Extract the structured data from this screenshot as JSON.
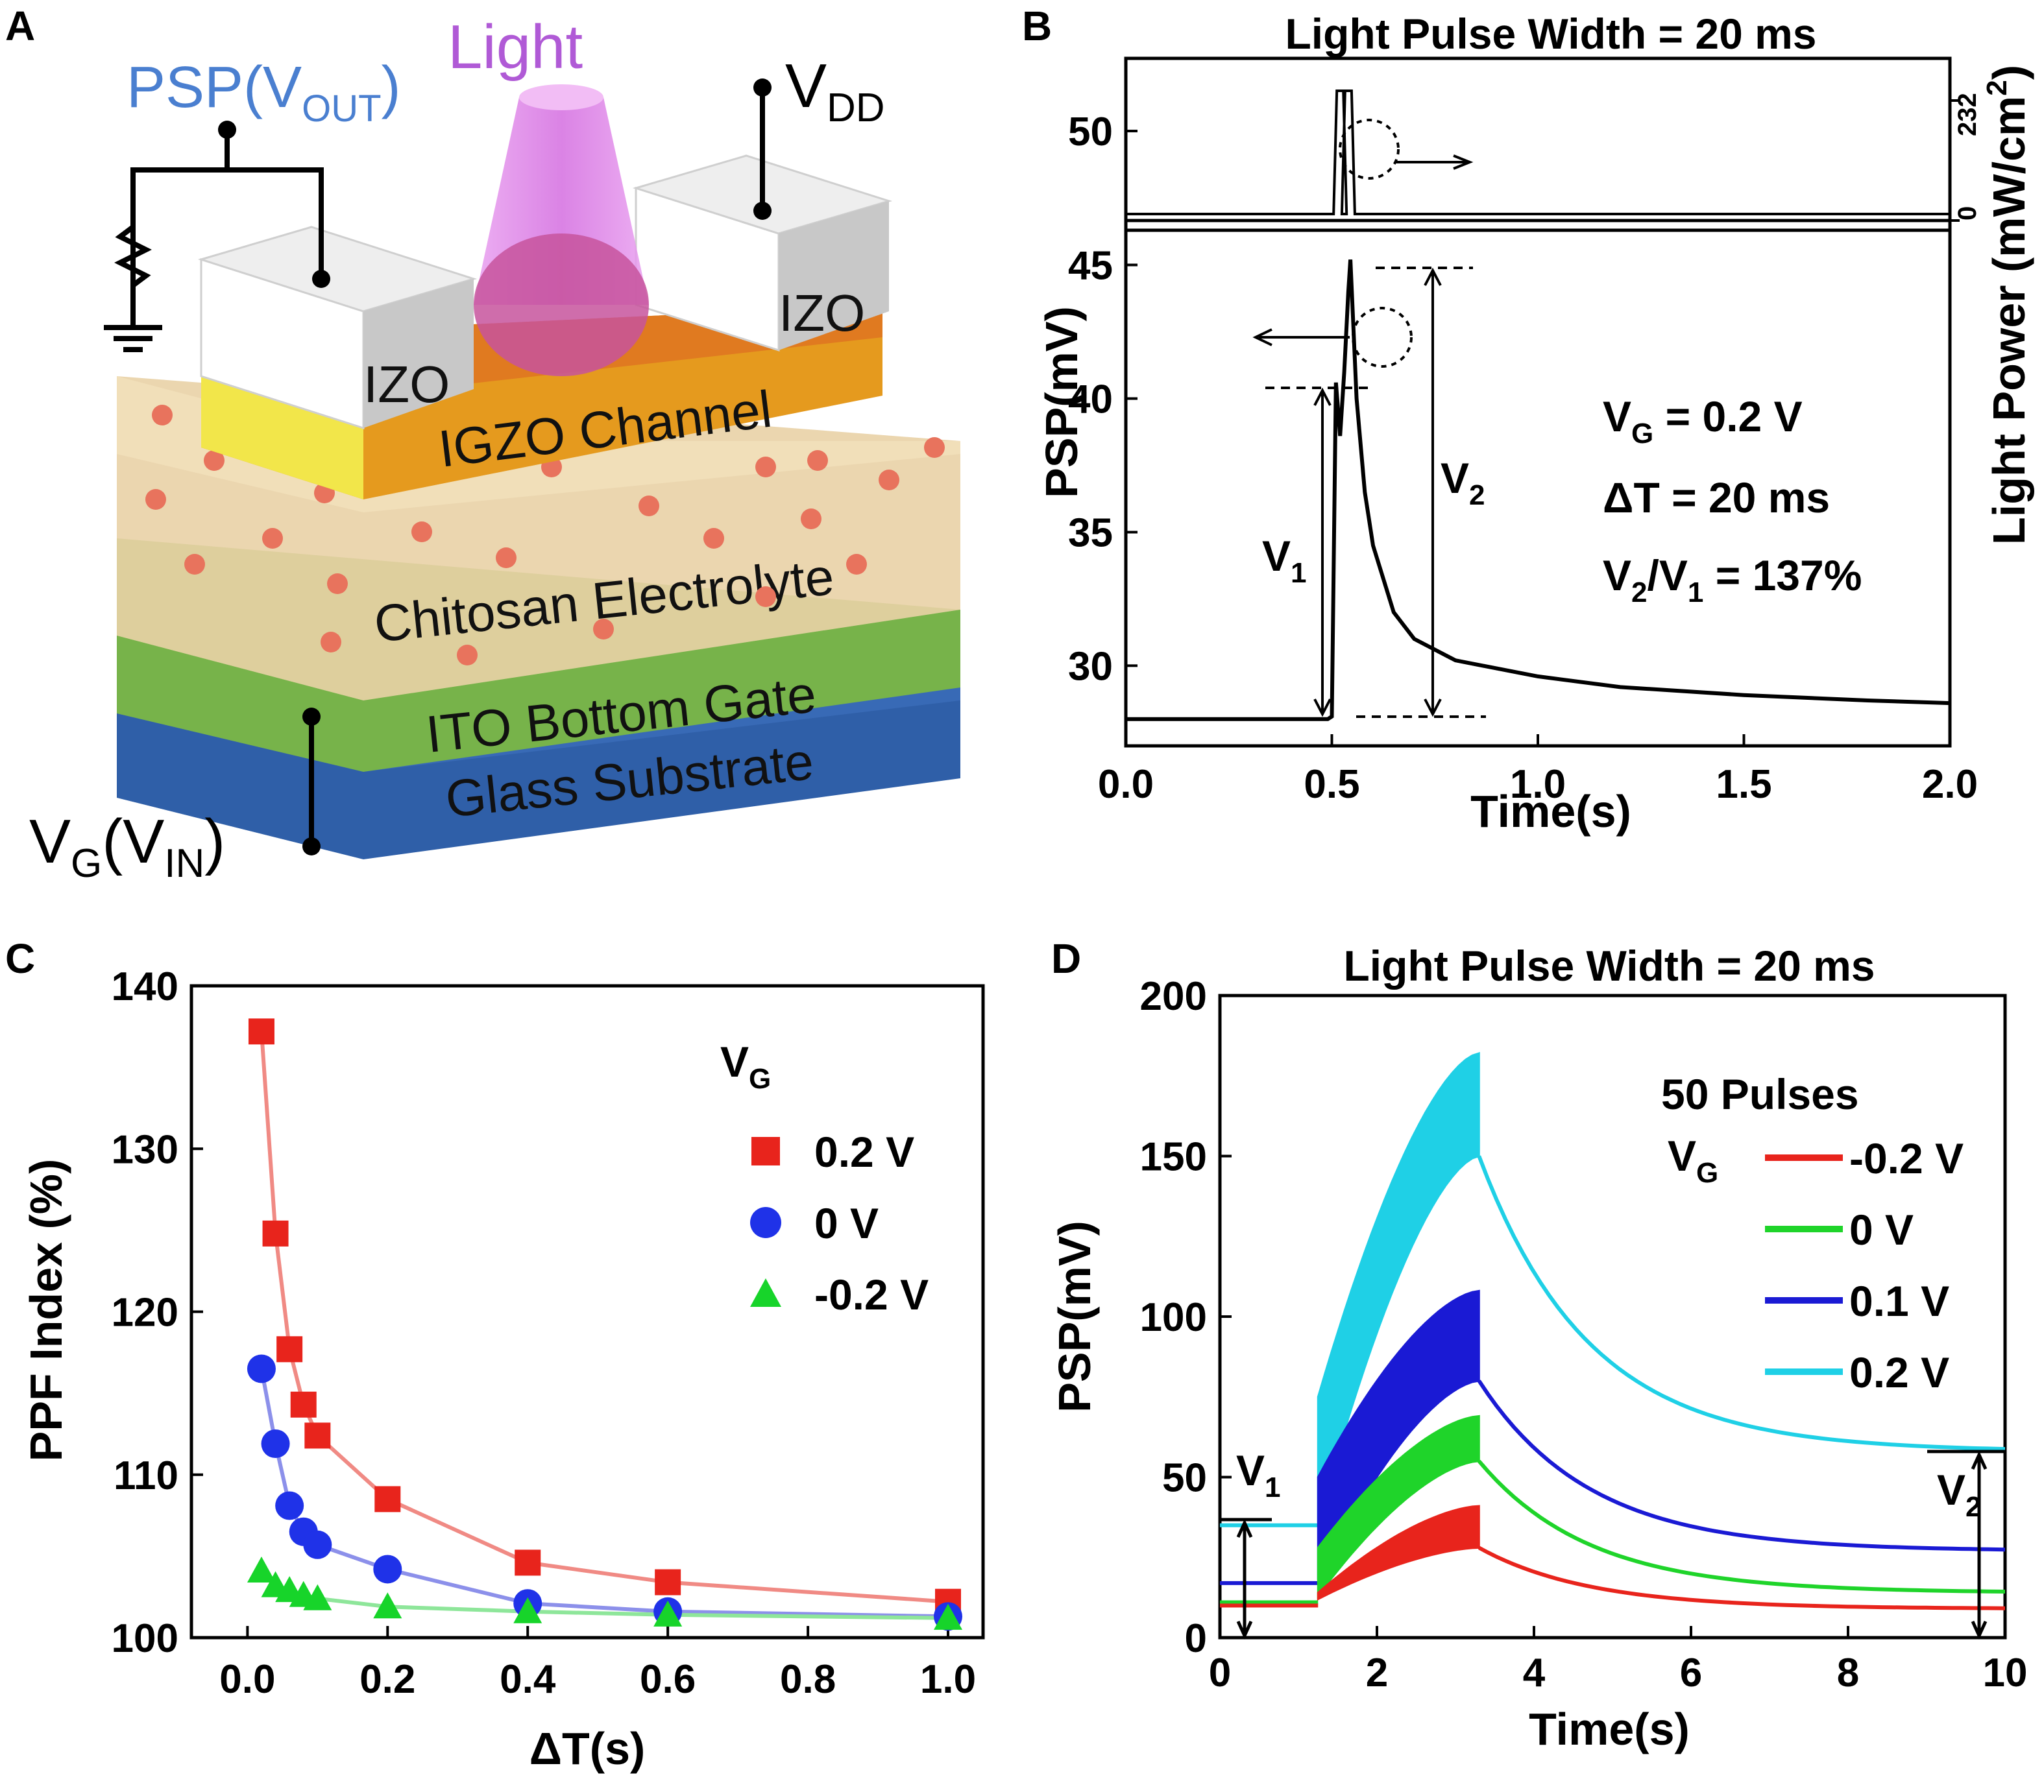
{
  "panels": {
    "A": {
      "label": "A",
      "psp": "PSP(V",
      "psp_sub": "OUT",
      "psp_close": ")",
      "light": "Light",
      "vdd": "V",
      "vdd_sub": "DD",
      "izo_left": "IZO",
      "izo_right": "IZO",
      "channel": "IGZO Channel",
      "electrolyte": "Chitosan Electrolyte",
      "gate": "ITO Bottom Gate",
      "substrate": "Glass Substrate",
      "vg": "V",
      "vg_sub": "G",
      "vg_paren": "(V",
      "vin_sub": "IN",
      "vg_close": ")",
      "colors": {
        "psp": "#4a7fd0",
        "light": "#b05ad6",
        "channel": "#e59a1e",
        "electrolyte": "#e9d2a6",
        "gate": "#77b34a",
        "substrate": "#2f5fa8",
        "ion": "#e8735d"
      }
    },
    "B": {
      "label": "B",
      "title": "Light Pulse Width = 20 ms",
      "ylabel": "PSP(mV)",
      "y2label": "Light Power (mW/cm",
      "y2label_sup": "2",
      "y2label_close": ")",
      "xlabel": "Time(s)",
      "y2ticks": [
        "0",
        "232"
      ],
      "v1": "V",
      "v1_sub": "1",
      "v2": "V",
      "v2_sub": "2",
      "anno_vg": "V",
      "anno_vg_sub": "G",
      "anno_vg_val": " = 0.2 V",
      "anno_dt": "ΔT = 20 ms",
      "anno_ratio_a": "V",
      "anno_ratio_a_sub": "2",
      "anno_ratio_b": "/V",
      "anno_ratio_b_sub": "1",
      "anno_ratio_val": " = 137%"
    },
    "C": {
      "label": "C",
      "ylabel": "PPF Index (%)",
      "xlabel": "ΔT(s)",
      "legend_title": "V",
      "legend_title_sub": "G"
    },
    "D": {
      "label": "D",
      "title": "Light Pulse Width = 20 ms",
      "ylabel": "PSP(mV)",
      "xlabel": "Time(s)",
      "legend_header": "50 Pulses",
      "legend_vg": "V",
      "legend_vg_sub": "G",
      "v1": "V",
      "v1_sub": "1",
      "v2": "V",
      "v2_sub": "2"
    }
  },
  "chart_data": [
    {
      "id": "B",
      "type": "line",
      "title": "Light Pulse Width = 20 ms",
      "xlabel": "Time(s)",
      "ylabel": "PSP(mV)",
      "xlim": [
        0.0,
        2.0
      ],
      "ylim": [
        27,
        53
      ],
      "xticks": [
        0.0,
        0.5,
        1.0,
        1.5,
        2.0
      ],
      "xtick_labels": [
        "0.0",
        "0.5",
        "1.0",
        "1.5",
        "2.0"
      ],
      "yticks": [
        30,
        35,
        40,
        45,
        50
      ],
      "ytick_labels": [
        "30",
        "35",
        "40",
        "45",
        "50"
      ],
      "series": [
        {
          "name": "PSP",
          "x": [
            0.0,
            0.49,
            0.5,
            0.51,
            0.52,
            0.53,
            0.54,
            0.545,
            0.56,
            0.58,
            0.6,
            0.65,
            0.7,
            0.8,
            1.0,
            1.2,
            1.5,
            1.8,
            2.0
          ],
          "y": [
            28.0,
            28.0,
            28.1,
            40.6,
            38.6,
            41.0,
            44.0,
            45.2,
            40.0,
            36.5,
            34.5,
            32.0,
            31.0,
            30.2,
            29.6,
            29.2,
            28.9,
            28.7,
            28.6
          ]
        }
      ],
      "light_pulses_s": [
        0.52,
        0.54
      ],
      "light_power_range": [
        0,
        232
      ]
    },
    {
      "id": "C",
      "type": "scatter",
      "xlabel": "ΔT(s)",
      "ylabel": "PPF Index (%)",
      "xlim": [
        -0.08,
        1.05
      ],
      "ylim": [
        100,
        140
      ],
      "xticks": [
        0.0,
        0.2,
        0.4,
        0.6,
        0.8,
        1.0
      ],
      "xtick_labels": [
        "0.0",
        "0.2",
        "0.4",
        "0.6",
        "0.8",
        "1.0"
      ],
      "yticks": [
        100,
        110,
        120,
        130,
        140
      ],
      "ytick_labels": [
        "100",
        "110",
        "120",
        "130",
        "140"
      ],
      "legend_title": "VG",
      "series": [
        {
          "name": "0.2 V",
          "marker": "square",
          "color": "#e8241c",
          "fit_color": "#f08a84",
          "x": [
            0.02,
            0.04,
            0.06,
            0.08,
            0.1,
            0.2,
            0.4,
            0.6,
            1.0
          ],
          "y": [
            137.2,
            124.8,
            117.7,
            114.3,
            112.4,
            108.5,
            104.6,
            103.4,
            102.2
          ]
        },
        {
          "name": "0 V",
          "marker": "circle",
          "color": "#1f32e8",
          "fit_color": "#8c90ea",
          "x": [
            0.02,
            0.04,
            0.06,
            0.08,
            0.1,
            0.2,
            0.4,
            0.6,
            1.0
          ],
          "y": [
            116.5,
            111.9,
            108.1,
            106.5,
            105.7,
            104.2,
            102.1,
            101.6,
            101.3
          ]
        },
        {
          "name": "-0.2 V",
          "marker": "triangle",
          "color": "#17d42a",
          "fit_color": "#8ee69a",
          "x": [
            0.02,
            0.04,
            0.06,
            0.08,
            0.1,
            0.2,
            0.4,
            0.6,
            1.0
          ],
          "y": [
            104.1,
            103.2,
            102.9,
            102.6,
            102.4,
            101.9,
            101.6,
            101.4,
            101.2
          ]
        }
      ]
    },
    {
      "id": "D",
      "type": "line",
      "title": "Light Pulse Width = 20 ms",
      "xlabel": "Time(s)",
      "ylabel": "PSP(mV)",
      "xlim": [
        0,
        10
      ],
      "ylim": [
        0,
        200
      ],
      "xticks": [
        0,
        2,
        4,
        6,
        8,
        10
      ],
      "xtick_labels": [
        "0",
        "2",
        "4",
        "6",
        "8",
        "10"
      ],
      "yticks": [
        0,
        50,
        100,
        150,
        200
      ],
      "ytick_labels": [
        "0",
        "50",
        "100",
        "150",
        "200"
      ],
      "pulse_train_s": [
        1.25,
        3.3
      ],
      "series": [
        {
          "name": "-0.2 V",
          "color": "#e8241c",
          "baseline": 10,
          "start_low": 12,
          "start_high": 14,
          "peak_low": 28,
          "peak_high": 41,
          "end": 9
        },
        {
          "name": "0 V",
          "color": "#1fd42a",
          "baseline": 11,
          "start_low": 13,
          "start_high": 28,
          "peak_low": 55,
          "peak_high": 69,
          "end": 14
        },
        {
          "name": "0.1 V",
          "color": "#1a1ad4",
          "baseline": 17,
          "start_low": 18,
          "start_high": 50,
          "peak_low": 80,
          "peak_high": 108,
          "end": 27
        },
        {
          "name": "0.2 V",
          "color": "#1fd0e6",
          "baseline": 35,
          "start_low": 36,
          "start_high": 75,
          "peak_low": 150,
          "peak_high": 182,
          "end": 58
        }
      ]
    }
  ]
}
